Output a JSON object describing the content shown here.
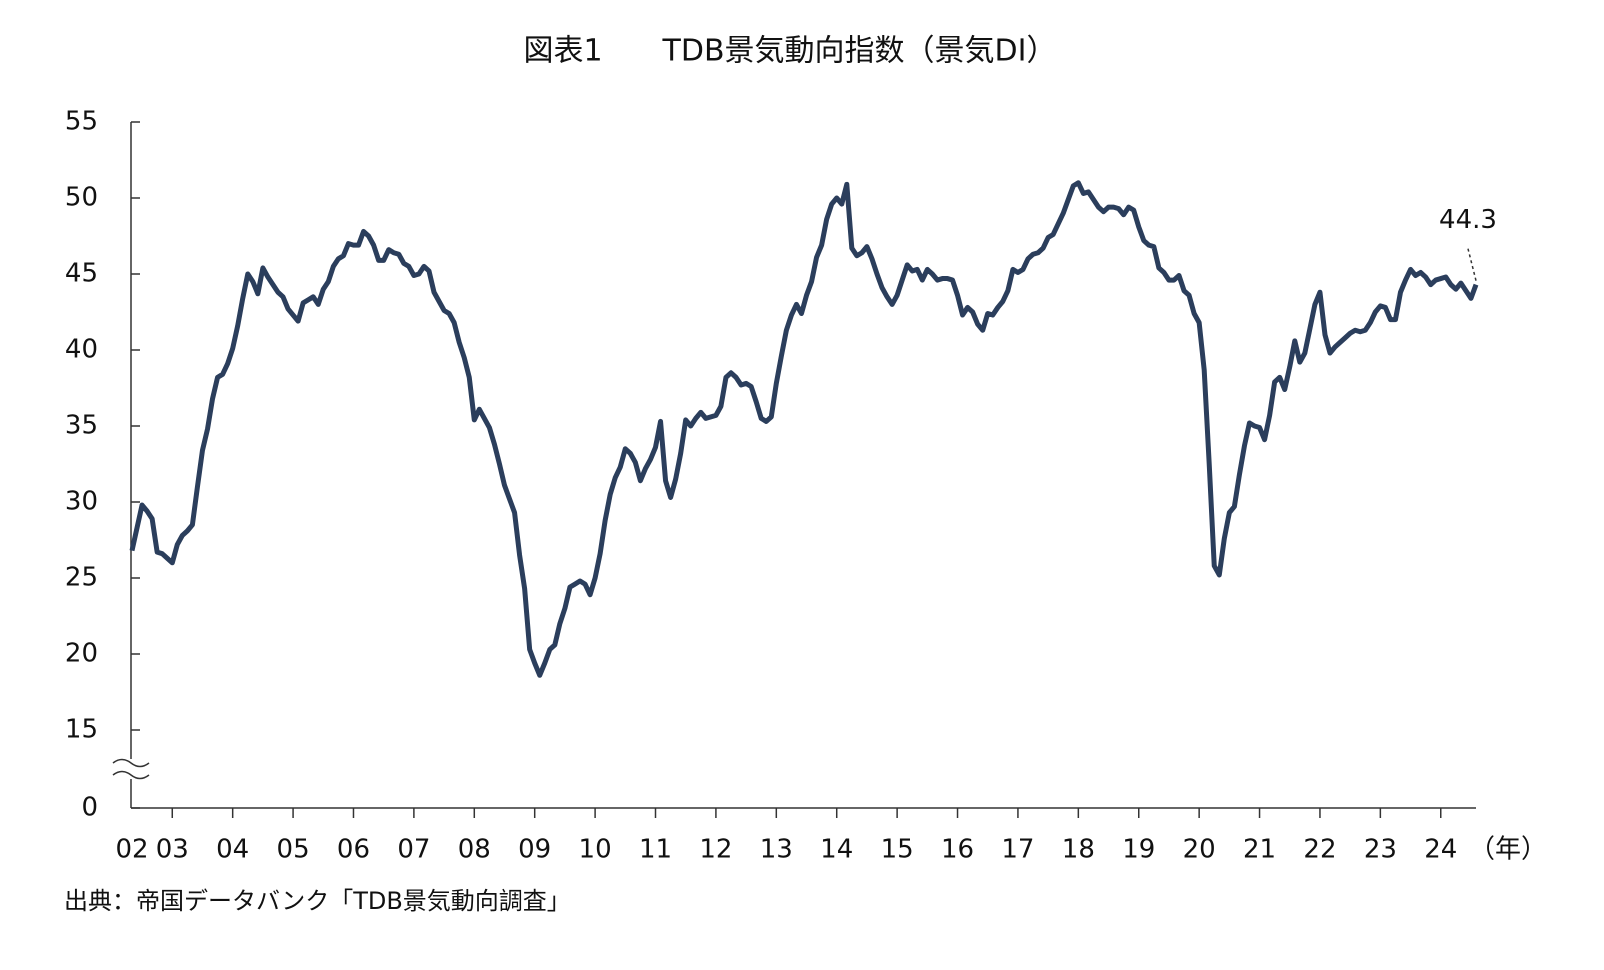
{
  "chart_data": {
    "type": "line",
    "title": "図表1　　TDB景気動向指数（景気DI）",
    "x_unit": "（年）",
    "source": "出典：帝国データバンク「TDB景気動向調査」",
    "x_labels": [
      "02",
      "03",
      "04",
      "05",
      "06",
      "07",
      "08",
      "09",
      "10",
      "11",
      "12",
      "13",
      "14",
      "15",
      "16",
      "17",
      "18",
      "19",
      "20",
      "21",
      "22",
      "23",
      "24"
    ],
    "color": "#2b3e5c",
    "ylim": [
      0,
      55
    ],
    "y_break": [
      0,
      15
    ],
    "yticks": [
      0,
      15,
      20,
      25,
      30,
      35,
      40,
      45,
      50,
      55
    ],
    "values": [
      26.8,
      28.3,
      29.8,
      29.4,
      28.9,
      26.7,
      26.6,
      26.3,
      26.0,
      27.2,
      27.8,
      28.1,
      28.5,
      31.0,
      33.4,
      34.8,
      36.8,
      38.2,
      38.4,
      39.1,
      40.1,
      41.6,
      43.4,
      45.0,
      44.5,
      43.7,
      45.4,
      44.8,
      44.3,
      43.8,
      43.5,
      42.7,
      42.3,
      41.9,
      43.1,
      43.3,
      43.5,
      43.0,
      44.0,
      44.5,
      45.5,
      46.0,
      46.2,
      47.0,
      46.9,
      46.9,
      47.8,
      47.5,
      46.9,
      45.9,
      45.9,
      46.6,
      46.4,
      46.3,
      45.7,
      45.5,
      44.9,
      45.0,
      45.5,
      45.2,
      43.8,
      43.2,
      42.6,
      42.4,
      41.8,
      40.5,
      39.5,
      38.2,
      35.4,
      36.1,
      35.5,
      34.9,
      33.8,
      32.5,
      31.1,
      30.2,
      29.3,
      26.5,
      24.3,
      20.3,
      19.4,
      18.6,
      19.4,
      20.3,
      20.6,
      22.0,
      23.0,
      24.4,
      24.6,
      24.8,
      24.6,
      23.9,
      25.0,
      26.6,
      28.8,
      30.5,
      31.6,
      32.3,
      33.5,
      33.2,
      32.6,
      31.4,
      32.2,
      32.8,
      33.6,
      35.3,
      31.4,
      30.3,
      31.5,
      33.2,
      35.4,
      35.0,
      35.5,
      35.9,
      35.5,
      35.6,
      35.7,
      36.3,
      38.2,
      38.5,
      38.2,
      37.7,
      37.8,
      37.6,
      36.6,
      35.5,
      35.3,
      35.6,
      37.8,
      39.6,
      41.3,
      42.3,
      43.0,
      42.4,
      43.6,
      44.5,
      46.1,
      46.9,
      48.6,
      49.6,
      50.0,
      49.6,
      50.9,
      46.7,
      46.2,
      46.4,
      46.8,
      46.0,
      45.0,
      44.1,
      43.5,
      43.0,
      43.6,
      44.6,
      45.6,
      45.2,
      45.3,
      44.6,
      45.3,
      45.0,
      44.6,
      44.7,
      44.7,
      44.6,
      43.6,
      42.3,
      42.8,
      42.5,
      41.7,
      41.3,
      42.4,
      42.3,
      42.8,
      43.2,
      43.9,
      45.3,
      45.1,
      45.3,
      46.0,
      46.3,
      46.4,
      46.7,
      47.4,
      47.6,
      48.3,
      49.0,
      49.9,
      50.8,
      51.0,
      50.3,
      50.4,
      49.9,
      49.4,
      49.1,
      49.4,
      49.4,
      49.3,
      48.9,
      49.4,
      49.2,
      48.1,
      47.2,
      46.9,
      46.8,
      45.4,
      45.1,
      44.6,
      44.6,
      44.9,
      43.9,
      43.6,
      42.4,
      41.8,
      38.7,
      32.5,
      25.8,
      25.2,
      27.6,
      29.3,
      29.7,
      31.8,
      33.7,
      35.2,
      35.0,
      34.9,
      34.1,
      35.7,
      37.9,
      38.2,
      37.4,
      38.9,
      40.6,
      39.2,
      39.8,
      41.4,
      43.0,
      43.8,
      41.0,
      39.8,
      40.2,
      40.5,
      40.8,
      41.1,
      41.3,
      41.2,
      41.3,
      41.8,
      42.5,
      42.9,
      42.8,
      42.0,
      42.0,
      43.8,
      44.6,
      45.3,
      44.9,
      45.1,
      44.8,
      44.3,
      44.6,
      44.7,
      44.8,
      44.3,
      44.0,
      44.4,
      43.9,
      43.4,
      44.3
    ]
  }
}
